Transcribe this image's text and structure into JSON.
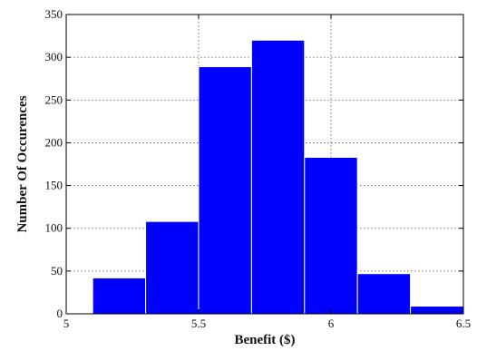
{
  "chart_data": {
    "type": "bar",
    "subtype": "histogram",
    "xlabel": "Benefit ($)",
    "ylabel": "Number Of Occurences",
    "xlim": [
      5,
      6.5
    ],
    "ylim": [
      0,
      350
    ],
    "xticks": [
      5,
      5.5,
      6,
      6.5
    ],
    "xtick_labels": [
      "5",
      "5.5",
      "6",
      "6.5"
    ],
    "yticks": [
      0,
      50,
      100,
      150,
      200,
      250,
      300,
      350
    ],
    "ytick_labels": [
      "0",
      "50",
      "100",
      "150",
      "200",
      "250",
      "300",
      "350"
    ],
    "grid": true,
    "bins": [
      {
        "x0": 5.1,
        "x1": 5.3,
        "value": 42
      },
      {
        "x0": 5.3,
        "x1": 5.5,
        "value": 108
      },
      {
        "x0": 5.5,
        "x1": 5.7,
        "value": 289
      },
      {
        "x0": 5.7,
        "x1": 5.9,
        "value": 320
      },
      {
        "x0": 5.9,
        "x1": 6.1,
        "value": 183
      },
      {
        "x0": 6.1,
        "x1": 6.3,
        "value": 47
      },
      {
        "x0": 6.3,
        "x1": 6.5,
        "value": 9
      }
    ],
    "bar_color": "#0000ff",
    "edge_color": "#ffffff"
  }
}
